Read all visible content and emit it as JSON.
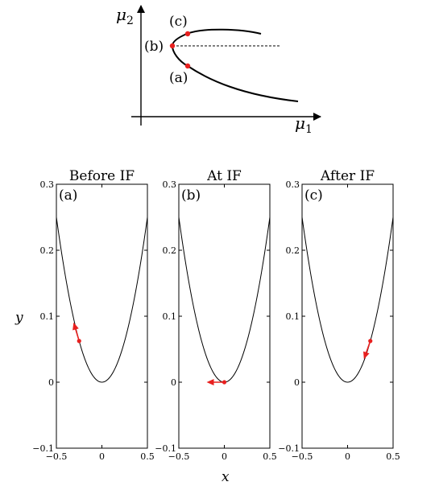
{
  "bifurcation_diagram": {
    "axis_x_label": "μ",
    "axis_x_subscript": "1",
    "axis_y_label": "μ",
    "axis_y_subscript": "2",
    "point_labels": [
      "(c)",
      "(b)",
      "(a)"
    ]
  },
  "panels": [
    {
      "title": "Before IF",
      "tag": "(a)",
      "velocity": "up-left"
    },
    {
      "title": "At IF",
      "tag": "(b)",
      "velocity": "left"
    },
    {
      "title": "After IF",
      "tag": "(c)",
      "velocity": "down-left"
    }
  ],
  "axes": {
    "x_label": "x",
    "y_label": "y",
    "x_ticks": [
      "−0.5",
      "0",
      "0.5"
    ],
    "y_ticks": [
      "0.3",
      "0.2",
      "0.1",
      "0",
      "−0.1"
    ],
    "xlim": [
      -0.5,
      0.5
    ],
    "ylim": [
      -0.1,
      0.3
    ]
  },
  "colors": {
    "marker": "#e8201f",
    "line": "#000000"
  }
}
